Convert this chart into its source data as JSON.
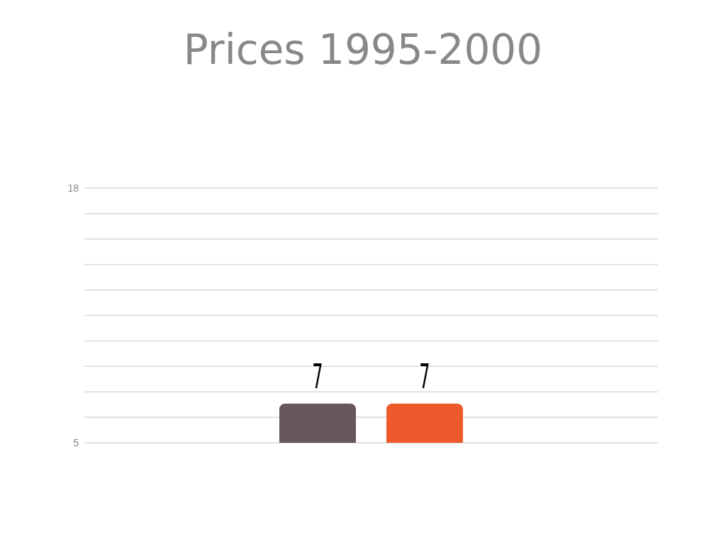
{
  "chart_data": {
    "type": "bar",
    "title": "Prices 1995-2000",
    "categories": [
      null
    ],
    "series": [
      {
        "color": "#67565b",
        "values": [
          7
        ]
      },
      {
        "color": "#ed5b2d",
        "values": [
          7
        ]
      }
    ],
    "ylim": [
      5,
      18
    ],
    "yticks": [
      5,
      {
        "value": 6.3,
        "label": null
      },
      {
        "value": 7.6,
        "label": null
      },
      {
        "value": 8.9,
        "label": null
      },
      {
        "value": 10.2,
        "label": null
      },
      {
        "value": 11.5,
        "label": null
      },
      {
        "value": 12.8,
        "label": null
      },
      {
        "value": 14.1,
        "label": null
      },
      {
        "value": 15.4,
        "label": null
      },
      {
        "value": 16.7,
        "label": null
      },
      18
    ],
    "grid": "y",
    "data_labels": true
  }
}
